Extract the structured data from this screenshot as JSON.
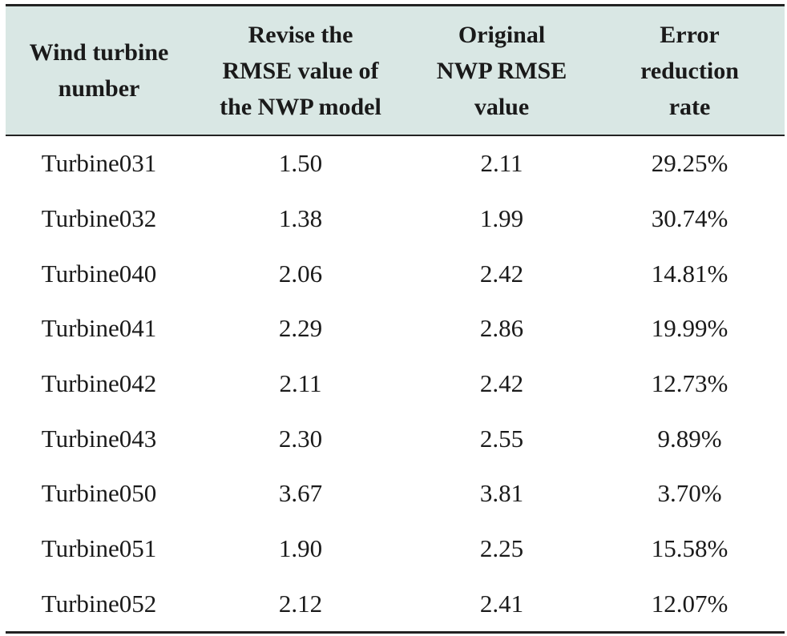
{
  "header": {
    "col1": [
      "Wind turbine",
      "number"
    ],
    "col2": [
      "Revise the",
      "RMSE value of",
      "the NWP model"
    ],
    "col3": [
      "Original",
      "NWP RMSE",
      "value"
    ],
    "col4": [
      "Error",
      "reduction",
      "rate"
    ]
  },
  "rows": [
    [
      "Turbine031",
      "1.50",
      "2.11",
      "29.25%"
    ],
    [
      "Turbine032",
      "1.38",
      "1.99",
      "30.74%"
    ],
    [
      "Turbine040",
      "2.06",
      "2.42",
      "14.81%"
    ],
    [
      "Turbine041",
      "2.29",
      "2.86",
      "19.99%"
    ],
    [
      "Turbine042",
      "2.11",
      "2.42",
      "12.73%"
    ],
    [
      "Turbine043",
      "2.30",
      "2.55",
      "9.89%"
    ],
    [
      "Turbine050",
      "3.67",
      "3.81",
      "3.70%"
    ],
    [
      "Turbine051",
      "1.90",
      "2.25",
      "15.58%"
    ],
    [
      "Turbine052",
      "2.12",
      "2.41",
      "12.07%"
    ]
  ],
  "colors": {
    "header_background": "#d9e7e4",
    "rule": "#222222",
    "text": "#1a1a1a"
  }
}
